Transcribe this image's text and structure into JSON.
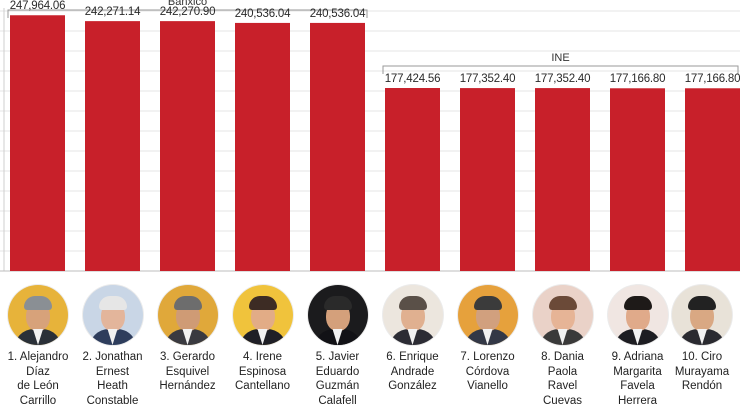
{
  "chart_data": {
    "type": "bar",
    "title": "",
    "xlabel": "",
    "ylabel": "",
    "ylim": [
      0,
      255000
    ],
    "grid": true,
    "categories": [
      "1. Alejandro Díaz de León Carrillo",
      "2. Jonathan Ernest Heath Constable",
      "3. Gerardo Esquivel Hernández",
      "4. Irene Espinosa Cantellano",
      "5. Javier Eduardo Guzmán Calafell",
      "6. Enrique Andrade González",
      "7. Lorenzo Córdova Vianello",
      "8. Dania Paola Ravel Cuevas",
      "9. Adriana Margarita Favela Herrera",
      "10. Ciro Murayama Rendón"
    ],
    "values": [
      247964.06,
      242271.14,
      242270.9,
      240536.04,
      240536.04,
      177424.56,
      177352.4,
      177352.4,
      177166.8,
      177166.8
    ],
    "value_labels": [
      "247,964.06",
      "242,271.14",
      "242,270.90",
      "240,536.04",
      "240,536.04",
      "177,424.56",
      "177,352.40",
      "177,352.40",
      "177,166.80",
      "177,166.80"
    ],
    "bar_color": "#c8202a",
    "groups": [
      {
        "label": "Banxico",
        "members": [
          0,
          1,
          2,
          3,
          4
        ]
      },
      {
        "label": "INE",
        "members": [
          5,
          6,
          7,
          8,
          9
        ]
      }
    ]
  },
  "people": [
    {
      "lines": [
        "1. Alejandro",
        "Díaz",
        "de León",
        "Carrillo"
      ],
      "bg": "#e7b33a",
      "hair": "#8a8f94",
      "skin": "#d7a27a",
      "suit": "#2a3038"
    },
    {
      "lines": [
        "2. Jonathan",
        "Ernest",
        "Heath",
        "Constable"
      ],
      "bg": "#c9d6e6",
      "hair": "#e6e6e6",
      "skin": "#e3b59b",
      "suit": "#2e3d5c"
    },
    {
      "lines": [
        "3. Gerardo",
        "Esquivel",
        "Hernández"
      ],
      "bg": "#e0a83a",
      "hair": "#6d6d6d",
      "skin": "#cf9b75",
      "suit": "#3a3a40"
    },
    {
      "lines": [
        "4. Irene",
        "Espinosa",
        "Cantellano"
      ],
      "bg": "#f0c33c",
      "hair": "#3d2c24",
      "skin": "#e2ac86",
      "suit": "#1f1f26"
    },
    {
      "lines": [
        "5. Javier",
        "Eduardo",
        "Guzmán",
        "Calafell"
      ],
      "bg": "#1b1b1d",
      "hair": "#2a2a2a",
      "skin": "#d4a07b",
      "suit": "#121216"
    },
    {
      "lines": [
        "6. Enrique",
        "Andrade",
        "González"
      ],
      "bg": "#ece6de",
      "hair": "#5a5048",
      "skin": "#e0b090",
      "suit": "#2c2c34"
    },
    {
      "lines": [
        "7. Lorenzo",
        "Córdova",
        "Vianello"
      ],
      "bg": "#e6a13c",
      "hair": "#3b3b3b",
      "skin": "#d1a07e",
      "suit": "#333846"
    },
    {
      "lines": [
        "8. Dania",
        "Paola",
        "Ravel",
        "Cuevas"
      ],
      "bg": "#ead2c8",
      "hair": "#6b4a38",
      "skin": "#e6b496",
      "suit": "#3a3a3a"
    },
    {
      "lines": [
        "9. Adriana",
        "Margarita",
        "Favela",
        "Herrera"
      ],
      "bg": "#f0e6e2",
      "hair": "#1e1a18",
      "skin": "#e0aa8a",
      "suit": "#1d1d22"
    },
    {
      "lines": [
        "10. Ciro",
        "Murayama",
        "Rendón"
      ],
      "bg": "#e8e2d8",
      "hair": "#222222",
      "skin": "#d9a883",
      "suit": "#2a2a30"
    }
  ]
}
